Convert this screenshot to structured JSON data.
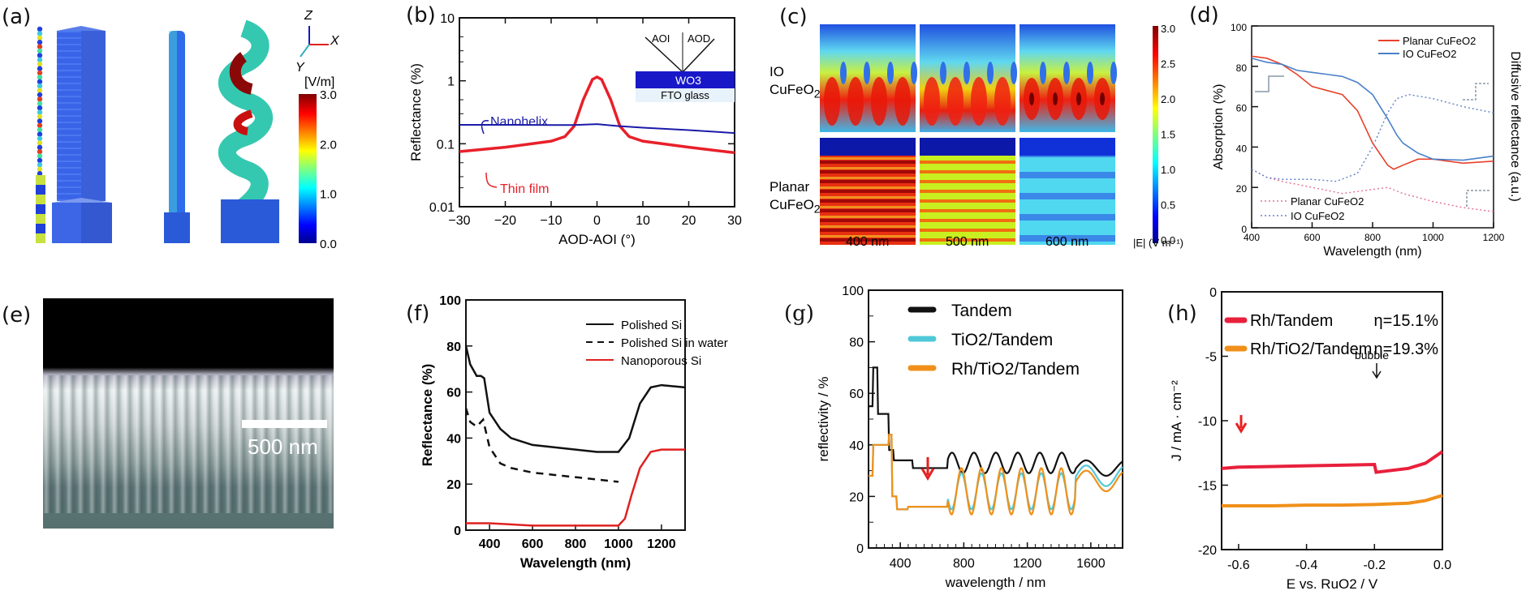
{
  "panels": {
    "a": {
      "label": "(a)",
      "axes": {
        "z": "Z",
        "x": "X",
        "y": "Y"
      },
      "colorbar": {
        "unit": "[V/m]",
        "ticks": [
          "3.0",
          "2.0",
          "1.0",
          "0.0"
        ],
        "range": [
          0,
          3.0
        ]
      }
    },
    "c": {
      "label": "(c)",
      "row_labels": [
        "IO",
        "CuFeO2",
        "Planar",
        "CuFeO2"
      ],
      "col_labels": [
        "400 nm",
        "500 nm",
        "600 nm"
      ],
      "colorbar": {
        "unit": "|E| (V m⁻¹)",
        "ticks": [
          "3.0",
          "2.5",
          "2.0",
          "1.5",
          "1.0",
          "0.5",
          "0.0"
        ],
        "range": [
          0,
          3.0
        ]
      }
    },
    "e": {
      "label": "(e)",
      "scale_bar": "500 nm"
    }
  },
  "chart_data": [
    {
      "id": "b",
      "panel_label": "(b)",
      "type": "line",
      "xlabel": "AOD-AOI (°)",
      "ylabel": "Reflectance (%)",
      "xlim": [
        -30,
        30
      ],
      "ylim": [
        0.01,
        10
      ],
      "yscale": "log",
      "xticks": [
        "−30",
        "−20",
        "−10",
        "0",
        "10",
        "20",
        "30"
      ],
      "yticks": [
        "0.01",
        "0.1",
        "1",
        "10"
      ],
      "inset": {
        "aoi": "AOI",
        "aod": "AOD",
        "layer1": "WO3",
        "layer2": "FTO glass"
      },
      "series": [
        {
          "name": "Nanohelix",
          "color": "#1a1aa8",
          "x": [
            -30,
            -20,
            -10,
            -5,
            0,
            5,
            10,
            20,
            30
          ],
          "y": [
            0.2,
            0.2,
            0.198,
            0.198,
            0.205,
            0.19,
            0.18,
            0.165,
            0.148
          ]
        },
        {
          "name": "Thin film",
          "color": "#e8202a",
          "x": [
            -30,
            -20,
            -10,
            -7,
            -5,
            -3,
            -1,
            0,
            1,
            3,
            5,
            7,
            10,
            20,
            30
          ],
          "y": [
            0.075,
            0.088,
            0.11,
            0.13,
            0.19,
            0.5,
            1.05,
            1.15,
            1.05,
            0.5,
            0.19,
            0.13,
            0.11,
            0.088,
            0.072
          ]
        }
      ]
    },
    {
      "id": "d",
      "panel_label": "(d)",
      "type": "line",
      "xlabel": "Wavelength (nm)",
      "ylabel": "Absorption (%)",
      "ylabel_right": "Diffusive reflectance (a.u.)",
      "xlim": [
        400,
        1200
      ],
      "ylim": [
        0,
        100
      ],
      "xticks": [
        "400",
        "600",
        "800",
        "1000",
        "1200"
      ],
      "yticks": [
        "0",
        "20",
        "40",
        "60",
        "80",
        "100"
      ],
      "legend_top": [
        "Planar CuFeO2",
        "IO CuFeO2"
      ],
      "legend_bottom": [
        "Planar CuFeO2",
        "IO CuFeO2"
      ],
      "series": [
        {
          "name": "Planar CuFeO2 absorption",
          "color": "#e8402a",
          "style": "solid",
          "x": [
            400,
            450,
            500,
            550,
            600,
            650,
            700,
            750,
            800,
            850,
            870,
            900,
            950,
            1000,
            1100,
            1200
          ],
          "y": [
            85,
            84,
            81,
            76,
            70,
            68,
            66,
            58,
            42,
            31,
            29,
            31,
            34,
            34,
            32,
            33
          ]
        },
        {
          "name": "IO CuFeO2 absorption",
          "color": "#4a80c8",
          "style": "solid",
          "x": [
            400,
            450,
            500,
            550,
            600,
            650,
            700,
            750,
            800,
            850,
            880,
            900,
            950,
            1000,
            1100,
            1200
          ],
          "y": [
            84,
            82,
            81,
            78,
            77,
            76,
            75,
            72,
            66,
            54,
            46,
            42,
            37,
            34,
            33.5,
            35.5
          ]
        },
        {
          "name": "Planar CuFeO2 reflectance",
          "color": "#e07090",
          "style": "dotted",
          "x": [
            400,
            450,
            500,
            600,
            700,
            800,
            850,
            900,
            1000,
            1100,
            1200
          ],
          "y": [
            29,
            25,
            23,
            20,
            17,
            19,
            20,
            17,
            13,
            10,
            8
          ]
        },
        {
          "name": "IO CuFeO2 reflectance",
          "color": "#6080c8",
          "style": "dotted",
          "x": [
            400,
            450,
            500,
            600,
            680,
            750,
            800,
            850,
            880,
            920,
            1000,
            1100,
            1200
          ],
          "y": [
            29,
            25,
            24,
            24,
            23,
            27,
            40,
            57,
            64,
            66,
            64,
            60,
            57
          ]
        }
      ]
    },
    {
      "id": "f",
      "panel_label": "(f)",
      "type": "line",
      "xlabel": "Wavelength (nm)",
      "ylabel": "Reflectance (%)",
      "xlim": [
        290,
        1310
      ],
      "ylim": [
        0,
        100
      ],
      "xticks": [
        "400",
        "600",
        "800",
        "1000",
        "1200"
      ],
      "yticks": [
        "0",
        "20",
        "40",
        "60",
        "80",
        "100"
      ],
      "series": [
        {
          "name": "Polished Si",
          "color": "#111111",
          "style": "solid",
          "x": [
            290,
            310,
            340,
            360,
            375,
            400,
            450,
            500,
            600,
            700,
            800,
            900,
            1000,
            1050,
            1100,
            1150,
            1200,
            1310
          ],
          "y": [
            80,
            72,
            67,
            67,
            66,
            51,
            44,
            40,
            37,
            36,
            35,
            34,
            34,
            40,
            55,
            62,
            63,
            62
          ]
        },
        {
          "name": "Polished Si in water",
          "color": "#111111",
          "style": "dashed",
          "x": [
            290,
            310,
            340,
            370,
            400,
            450,
            500,
            600,
            700,
            800,
            900,
            1000
          ],
          "y": [
            53,
            47,
            45,
            48,
            36,
            29,
            27,
            25,
            24,
            23,
            22,
            21
          ]
        },
        {
          "name": "Nanoporous Si",
          "color": "#e02020",
          "style": "solid",
          "x": [
            290,
            400,
            600,
            800,
            1000,
            1030,
            1060,
            1100,
            1150,
            1200,
            1310
          ],
          "y": [
            3,
            3,
            2,
            2,
            2,
            5,
            15,
            27,
            34,
            35,
            35
          ]
        }
      ]
    },
    {
      "id": "g",
      "panel_label": "(g)",
      "type": "line",
      "xlabel": "wavelength / nm",
      "ylabel": "reflectivity / %",
      "xlim": [
        200,
        1800
      ],
      "ylim": [
        0,
        100
      ],
      "xticks": [
        "400",
        "800",
        "1200",
        "1600"
      ],
      "yticks": [
        "0",
        "20",
        "40",
        "60",
        "80",
        "100"
      ],
      "series": [
        {
          "name": "Tandem",
          "color": "#111111"
        },
        {
          "name": "TiO2/Tandem",
          "color": "#50c8d8"
        },
        {
          "name": "Rh/TiO2/Tandem",
          "color": "#f0901a"
        }
      ]
    },
    {
      "id": "h",
      "panel_label": "(h)",
      "type": "line",
      "xlabel": "E vs. RuO2 / V",
      "ylabel": "J / mA · cm⁻²",
      "xlim": [
        -0.65,
        0.0
      ],
      "ylim": [
        -20,
        0
      ],
      "xticks": [
        "-0.6",
        "-0.4",
        "-0.2",
        "0.0"
      ],
      "yticks": [
        "0",
        "-5",
        "-10",
        "-15",
        "-20"
      ],
      "annotation": "bubble",
      "series": [
        {
          "name": "Rh/Tandem",
          "efficiency": "η=15.1%",
          "color": "#e8203c",
          "x": [
            -0.65,
            -0.6,
            -0.5,
            -0.4,
            -0.3,
            -0.2,
            -0.195,
            -0.1,
            -0.05,
            0.0
          ],
          "y": [
            -13.7,
            -13.6,
            -13.55,
            -13.5,
            -13.45,
            -13.4,
            -14.0,
            -13.7,
            -13.3,
            -12.4
          ]
        },
        {
          "name": "Rh/TiO2/Tandem",
          "efficiency": "η=19.3%",
          "color": "#f0901a",
          "x": [
            -0.65,
            -0.5,
            -0.4,
            -0.3,
            -0.2,
            -0.1,
            -0.05,
            0.0
          ],
          "y": [
            -16.6,
            -16.6,
            -16.55,
            -16.55,
            -16.5,
            -16.4,
            -16.2,
            -15.8
          ]
        }
      ]
    }
  ]
}
